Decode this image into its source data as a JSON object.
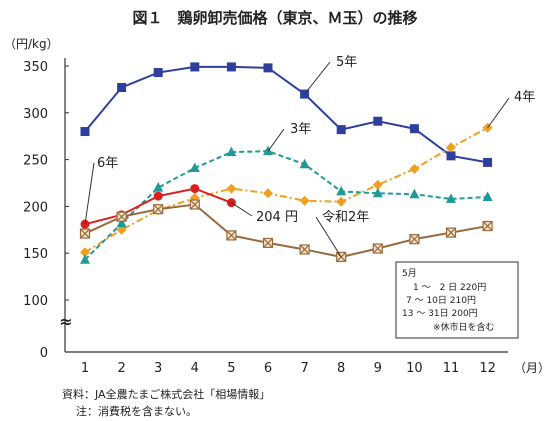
{
  "chart_data": {
    "type": "line",
    "title": "図１　鶏卵卸売価格（東京、Ｍ玉）の推移",
    "yunit": "（円/kg）",
    "xunit": "（月）",
    "categories": [
      "1",
      "2",
      "3",
      "4",
      "5",
      "6",
      "7",
      "8",
      "9",
      "10",
      "11",
      "12"
    ],
    "yticks": [
      "0",
      "100",
      "150",
      "200",
      "250",
      "300",
      "350"
    ],
    "ylim": [
      0,
      365
    ],
    "axis_break": "≈",
    "grid": false,
    "series": [
      {
        "name": "5年",
        "color": "#2e3f9e",
        "style": "solid",
        "marker": "square",
        "values": [
          280,
          327,
          343,
          349,
          349,
          348,
          320,
          282,
          291,
          283,
          254,
          247
        ]
      },
      {
        "name": "4年",
        "color": "#f0a020",
        "style": "dashdot",
        "marker": "diamond",
        "values": [
          151,
          175,
          196,
          209,
          219,
          214,
          206,
          205,
          223,
          240,
          263,
          284
        ]
      },
      {
        "name": "3年",
        "color": "#1f9a97",
        "style": "dashed",
        "marker": "triangle",
        "values": [
          143,
          182,
          220,
          241,
          258,
          259,
          245,
          216,
          214,
          213,
          208,
          210
        ]
      },
      {
        "name": "6年",
        "color": "#d92020",
        "style": "solid",
        "marker": "circle",
        "values": [
          181,
          191,
          211,
          219,
          204,
          null,
          null,
          null,
          null,
          null,
          null,
          null
        ]
      },
      {
        "name": "令和2年",
        "color": "#9a6a3c",
        "style": "solid",
        "marker": "x-square",
        "values": [
          171,
          189,
          197,
          202,
          169,
          161,
          154,
          146,
          155,
          165,
          172,
          179
        ]
      }
    ],
    "annotations": [
      {
        "text": "5年",
        "series": "5年"
      },
      {
        "text": "4年",
        "series": "4年"
      },
      {
        "text": "3年",
        "series": "3年"
      },
      {
        "text": "6年",
        "series": "6年"
      },
      {
        "text": "204 円",
        "series": "6年"
      },
      {
        "text": "令和2年",
        "series": "令和2年"
      }
    ],
    "box_note": {
      "lines": [
        "5月",
        "1 ～　2 日 220円",
        "7 ～ 10日 210円",
        "13 ～ 31日 200円",
        "※休市日を含む"
      ]
    }
  },
  "notes": {
    "source": "資料：JA全農たまご株式会社「相場情報」",
    "note": "注：消費税を含まない。"
  }
}
